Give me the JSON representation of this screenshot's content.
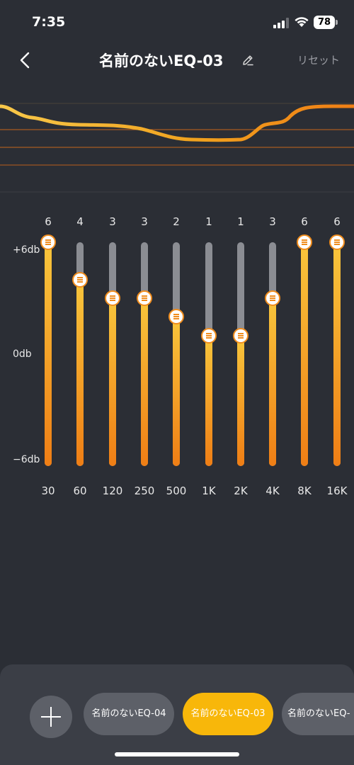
{
  "status_bar": {
    "time": "7:35",
    "battery": "78",
    "icons": [
      "signal-icon",
      "wifi-icon",
      "battery-icon"
    ]
  },
  "header": {
    "back_icon": "chevron-left-icon",
    "title": "名前のないEQ-03",
    "edit_icon": "pencil-icon",
    "reset_label": "リセット"
  },
  "colors": {
    "background": "#2b2e35",
    "accent": "#f8b70a",
    "fill_top": "#f8c63c",
    "fill_bottom": "#ef7e15",
    "track": "#8b8d93",
    "chip": "#5d6068",
    "sheet": "#3b3e46"
  },
  "eq": {
    "db_labels": {
      "top": "+6db",
      "mid": "0db",
      "bottom": "−6db"
    },
    "range_db": [
      -6,
      6
    ],
    "bands": [
      {
        "freq": "30",
        "value": "6",
        "db": 6
      },
      {
        "freq": "60",
        "value": "4",
        "db": 4
      },
      {
        "freq": "120",
        "value": "3",
        "db": 3
      },
      {
        "freq": "250",
        "value": "3",
        "db": 3
      },
      {
        "freq": "500",
        "value": "2",
        "db": 2
      },
      {
        "freq": "1K",
        "value": "1",
        "db": 1
      },
      {
        "freq": "2K",
        "value": "1",
        "db": 1
      },
      {
        "freq": "4K",
        "value": "3",
        "db": 3
      },
      {
        "freq": "8K",
        "value": "6",
        "db": 6
      },
      {
        "freq": "16K",
        "value": "6",
        "db": 6
      }
    ]
  },
  "presets": {
    "add_icon": "plus-icon",
    "items": [
      {
        "label": "名前のないEQ-04",
        "active": false
      },
      {
        "label": "名前のないEQ-03",
        "active": true
      },
      {
        "label": "名前のないEQ-",
        "active": false
      }
    ]
  }
}
